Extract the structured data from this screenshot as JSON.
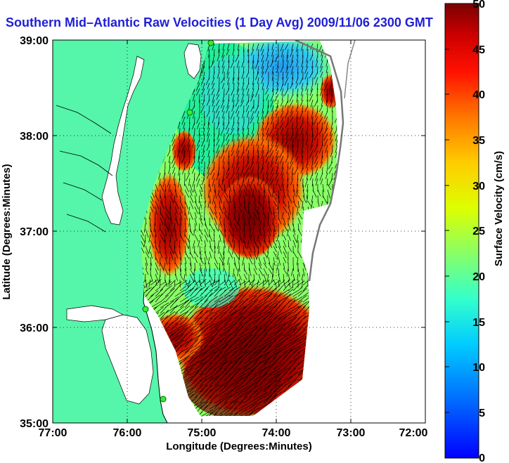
{
  "title": "Southern Mid–Atlantic Raw Velocities (1 Day Avg) 2009/11/06 2300 GMT",
  "axes": {
    "xlabel": "Longitude (Degrees:Minutes)",
    "ylabel": "Latitude (Degrees:Minutes)",
    "xticks": [
      "77:00",
      "76:00",
      "75:00",
      "74:00",
      "73:00",
      "72:00"
    ],
    "yticks": [
      "39:00",
      "38:00",
      "37:00",
      "36:00",
      "35:00"
    ]
  },
  "colorbar": {
    "label": "Surface Velocity (cm/s)",
    "ticks": [
      "50",
      "45",
      "40",
      "35",
      "30",
      "25",
      "20",
      "15",
      "10",
      "5",
      "0"
    ],
    "range": [
      0,
      50
    ],
    "units": "cm/s"
  },
  "colors": {
    "land": "#55f5aa",
    "title": "#1f1fd6",
    "station": "#33ee33"
  }
}
